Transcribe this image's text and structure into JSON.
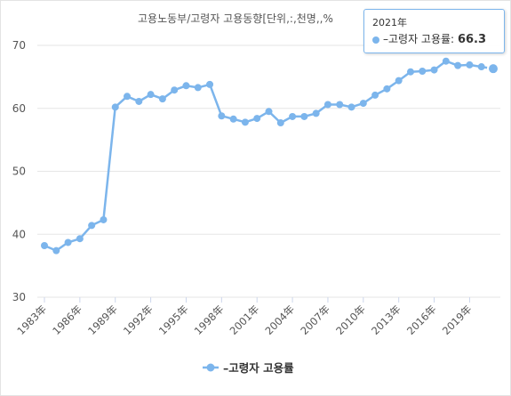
{
  "chart_data": {
    "type": "line",
    "title": "고용노동부/고령자 고용동향[단위,:,천명,,%",
    "xlabel": "",
    "ylabel": "",
    "ylim": [
      30,
      70
    ],
    "yticks": [
      30,
      40,
      50,
      60,
      70
    ],
    "grid": true,
    "x": [
      "1983年",
      "1984年",
      "1985年",
      "1986年",
      "1987年",
      "1988年",
      "1989年",
      "1990年",
      "1991年",
      "1992年",
      "1993年",
      "1994年",
      "1995年",
      "1996年",
      "1997年",
      "1998年",
      "1999年",
      "2000年",
      "2001年",
      "2002年",
      "2003年",
      "2004年",
      "2005年",
      "2006年",
      "2007年",
      "2008年",
      "2009年",
      "2010年",
      "2011年",
      "2012年",
      "2013年",
      "2014年",
      "2015年",
      "2016年",
      "2017年",
      "2018年",
      "2019年",
      "2020年",
      "2021年"
    ],
    "xtick_labels": [
      "1983年",
      "1986年",
      "1989年",
      "1992年",
      "1995年",
      "1998年",
      "2001年",
      "2004年",
      "2007年",
      "2010年",
      "2013年",
      "2016年",
      "2019年"
    ],
    "series": [
      {
        "name": "–고령자 고용률",
        "color": "#7cb5ec",
        "values": [
          38.2,
          37.4,
          38.7,
          39.3,
          41.4,
          42.3,
          60.2,
          61.9,
          61.1,
          62.2,
          61.5,
          62.9,
          63.6,
          63.3,
          63.8,
          58.8,
          58.3,
          57.8,
          58.4,
          59.5,
          57.7,
          58.7,
          58.7,
          59.2,
          60.6,
          60.6,
          60.2,
          60.8,
          62.1,
          63.1,
          64.4,
          65.8,
          65.9,
          66.1,
          67.5,
          66.8,
          66.9,
          66.6,
          66.3
        ]
      }
    ],
    "legend": {
      "position": "bottom",
      "label": "–고령자 고용률"
    },
    "tooltip": {
      "year": "2021年",
      "series_label": "–고령자 고용률:",
      "value": "66.3"
    }
  }
}
